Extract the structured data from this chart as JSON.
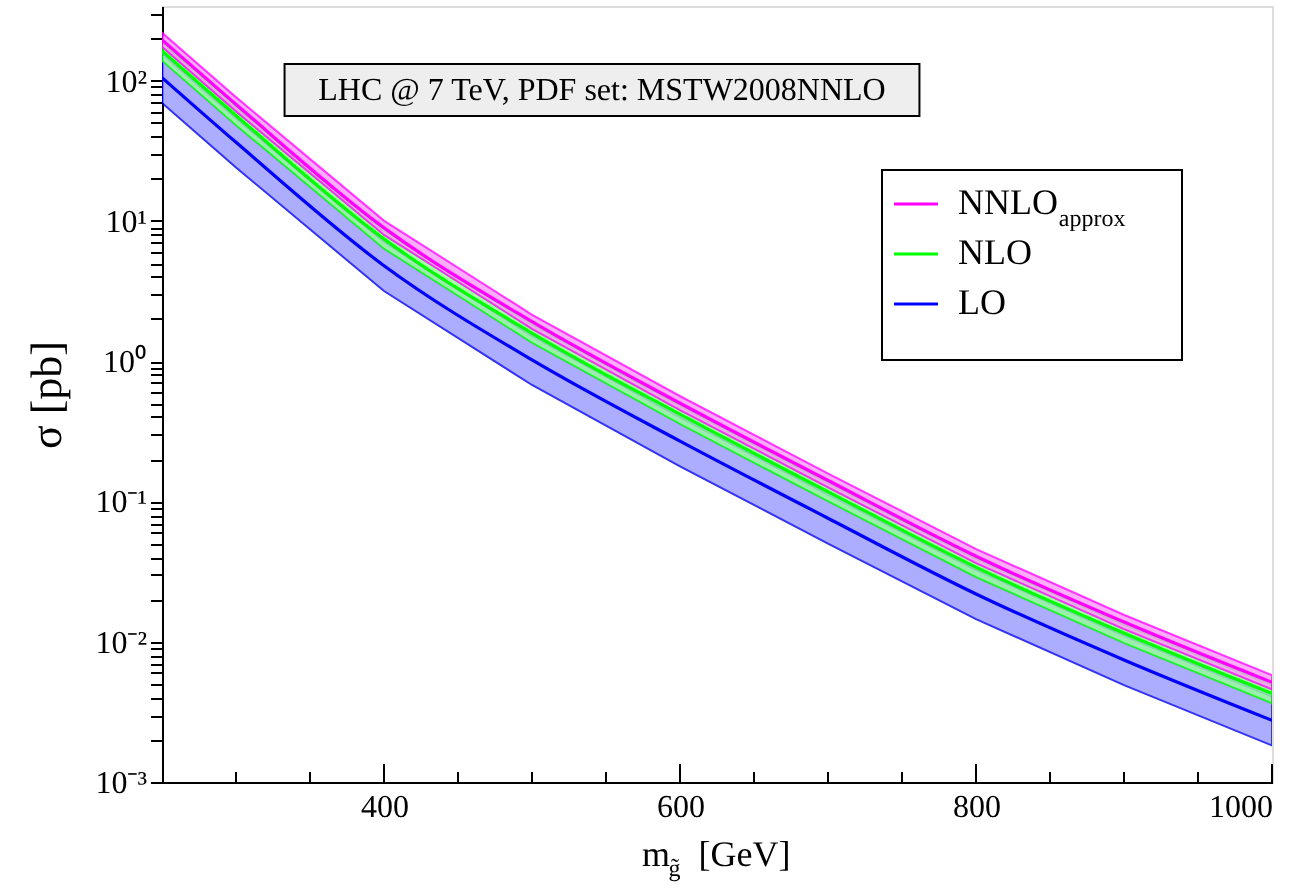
{
  "chart_data": {
    "type": "line",
    "xlabel": "m$_{g̃}$ [GeV]",
    "ylabel": "σ [pb]",
    "annotations": [
      "LHC @ 7 TeV, PDF set: MSTW2008NNLO"
    ],
    "x": [
      250,
      300,
      400,
      500,
      600,
      700,
      800,
      900,
      1000
    ],
    "series": [
      {
        "name": "NNLO$_{approx}$",
        "color": "#ff00ff",
        "values": [
          195,
          67.6,
          8.91,
          1.91,
          0.501,
          0.141,
          0.0407,
          0.0138,
          0.00513
        ],
        "lower": [
          174,
          60.3,
          7.94,
          1.7,
          0.447,
          0.126,
          0.0363,
          0.0123,
          0.00457
        ],
        "upper": [
          219,
          75.9,
          10,
          2.14,
          0.562,
          0.158,
          0.0457,
          0.0155,
          0.00575
        ]
      },
      {
        "name": "NLO",
        "color": "#00ff00",
        "values": [
          162,
          56.2,
          7.41,
          1.58,
          0.417,
          0.117,
          0.0339,
          0.0115,
          0.00427
        ],
        "lower": [
          138,
          47.9,
          6.31,
          1.35,
          0.355,
          0.1,
          0.0288,
          0.00977,
          0.00363
        ],
        "upper": [
          186,
          64.6,
          8.51,
          1.82,
          0.479,
          0.135,
          0.0389,
          0.0132,
          0.0049
        ]
      },
      {
        "name": "LO",
        "color": "#0000ff",
        "values": [
          105,
          36.3,
          4.79,
          1.02,
          0.269,
          0.0759,
          0.0219,
          0.00741,
          0.00275
        ],
        "lower": [
          69.2,
          24,
          3.16,
          0.676,
          0.178,
          0.0501,
          0.0145,
          0.0049,
          0.00182
        ],
        "upper": [
          155,
          53.7,
          7.08,
          1.51,
          0.398,
          0.112,
          0.0324,
          0.011,
          0.00407
        ]
      }
    ],
    "xlim": [
      250,
      1000
    ],
    "xticks": [
      {
        "value": 300,
        "label": null
      },
      {
        "value": 350,
        "label": null
      },
      400,
      {
        "value": 450,
        "label": null
      },
      {
        "value": 500,
        "label": null
      },
      {
        "value": 550,
        "label": null
      },
      600,
      {
        "value": 650,
        "label": null
      },
      {
        "value": 700,
        "label": null
      },
      {
        "value": 750,
        "label": null
      },
      800,
      {
        "value": 850,
        "label": null
      },
      {
        "value": 900,
        "label": null
      },
      {
        "value": 950,
        "label": null
      },
      1000
    ],
    "ylim": [
      0.001,
      340
    ],
    "yticks": [
      {
        "value": 0.001,
        "label": "10⁻³"
      },
      {
        "value": 0.002,
        "label": null
      },
      {
        "value": 0.003,
        "label": null
      },
      {
        "value": 0.004,
        "label": null
      },
      {
        "value": 0.005,
        "label": null
      },
      {
        "value": 0.006,
        "label": null
      },
      {
        "value": 0.007,
        "label": null
      },
      {
        "value": 0.008,
        "label": null
      },
      {
        "value": 0.009,
        "label": null
      },
      {
        "value": 0.01,
        "label": "10⁻²"
      },
      {
        "value": 0.02,
        "label": null
      },
      {
        "value": 0.03,
        "label": null
      },
      {
        "value": 0.04,
        "label": null
      },
      {
        "value": 0.05,
        "label": null
      },
      {
        "value": 0.06,
        "label": null
      },
      {
        "value": 0.07,
        "label": null
      },
      {
        "value": 0.08,
        "label": null
      },
      {
        "value": 0.09,
        "label": null
      },
      {
        "value": 0.1,
        "label": "10⁻¹"
      },
      {
        "value": 0.2,
        "label": null
      },
      {
        "value": 0.3,
        "label": null
      },
      {
        "value": 0.4,
        "label": null
      },
      {
        "value": 0.5,
        "label": null
      },
      {
        "value": 0.6,
        "label": null
      },
      {
        "value": 0.7,
        "label": null
      },
      {
        "value": 0.8,
        "label": null
      },
      {
        "value": 0.9,
        "label": null
      },
      {
        "value": 1,
        "label": "10⁰"
      },
      {
        "value": 2,
        "label": null
      },
      {
        "value": 3,
        "label": null
      },
      {
        "value": 4,
        "label": null
      },
      {
        "value": 5,
        "label": null
      },
      {
        "value": 6,
        "label": null
      },
      {
        "value": 7,
        "label": null
      },
      {
        "value": 8,
        "label": null
      },
      {
        "value": 9,
        "label": null
      },
      {
        "value": 10,
        "label": "10¹"
      },
      {
        "value": 20,
        "label": null
      },
      {
        "value": 30,
        "label": null
      },
      {
        "value": 40,
        "label": null
      },
      {
        "value": 50,
        "label": null
      },
      {
        "value": 60,
        "label": null
      },
      {
        "value": 70,
        "label": null
      },
      {
        "value": 80,
        "label": null
      },
      {
        "value": 90,
        "label": null
      },
      {
        "value": 100,
        "label": "10²"
      },
      {
        "value": 200,
        "label": null
      },
      {
        "value": 300,
        "label": null
      }
    ],
    "log": "y",
    "grid": false,
    "legend": "top right",
    "marker": "none",
    "line_style": "solid"
  }
}
